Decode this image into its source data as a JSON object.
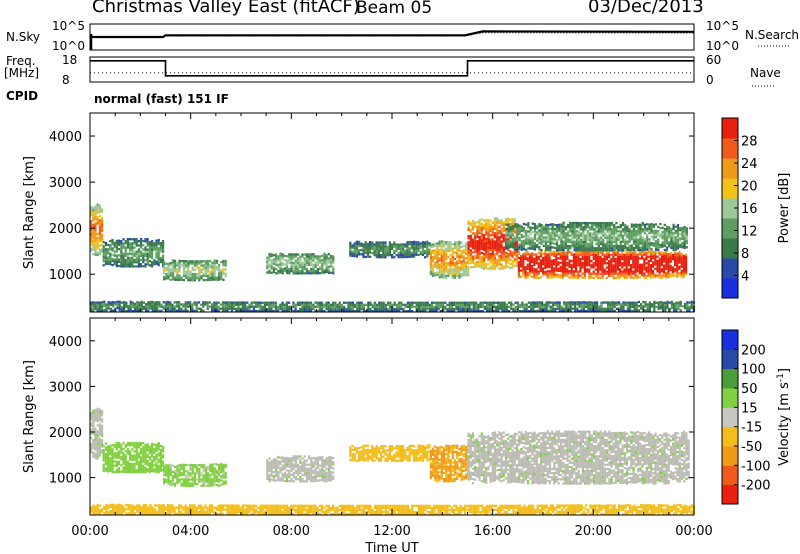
{
  "header": {
    "title": "Christmas Valley East (fitACF)",
    "beam": "Beam 05",
    "date": "03/Dec/2013"
  },
  "labels": {
    "nsky": "N.Sky",
    "nsearch": "N.Search",
    "freq": "Freq.",
    "freq_unit": "[MHz]",
    "nave": "Nave",
    "cpid": "CPID",
    "cpid_value": "normal (fast) 151 IF",
    "nsky_ticks": [
      "10^5",
      "10^0"
    ],
    "nsearch_ticks": [
      "10^5",
      "10^0"
    ],
    "freq_ticks": [
      "18",
      "8"
    ],
    "nave_ticks": [
      "60",
      "0"
    ]
  },
  "colors": {
    "power": [
      "#1a2fe0",
      "#2a4aa8",
      "#3a7a4a",
      "#5e9e63",
      "#9ec89a",
      "#f2c21a",
      "#f09a1a",
      "#f05a1a",
      "#e8200e"
    ],
    "velocity": [
      "#e8200e",
      "#f05a1a",
      "#f09a1a",
      "#f3be1c",
      "#c8c8c0",
      "#80d040",
      "#4a9e3a",
      "#2a4aa8",
      "#1a2fe0"
    ],
    "ground_scatter": "#bcbcb4"
  },
  "chart_data": [
    {
      "type": "line",
      "name": "noise-panel",
      "x": [
        0,
        2.9,
        3.0,
        14.9,
        15.6,
        24
      ],
      "series": [
        {
          "name": "N.Sky",
          "values": [
            3.0,
            3.0,
            3.4,
            3.4,
            4.3,
            4.2
          ]
        },
        {
          "name": "N.Search",
          "values": [
            2.9,
            2.9,
            3.2,
            3.2,
            4.0,
            3.9
          ]
        }
      ],
      "ylabel": "N.Sky / N.Search",
      "xlim": [
        0,
        24
      ]
    },
    {
      "type": "line",
      "name": "freq-nave-panel",
      "x": [
        0,
        3.0,
        3.0,
        15.0,
        15.0,
        24
      ],
      "series": [
        {
          "name": "Freq.",
          "values": [
            16.5,
            16.5,
            10.5,
            10.5,
            16.5,
            16.5
          ]
        },
        {
          "name": "Nave",
          "values": [
            22,
            22,
            22,
            22,
            22,
            22
          ]
        }
      ],
      "ylim": [
        8,
        18
      ],
      "xlim": [
        0,
        24
      ]
    },
    {
      "type": "heatmap",
      "name": "power-panel",
      "xlabel": "",
      "ylabel": "Slant Range [km]",
      "xlim": [
        0,
        24
      ],
      "ylim": [
        180,
        4500
      ],
      "x_ticks": [
        "00:00",
        "04:00",
        "08:00",
        "12:00",
        "16:00",
        "20:00",
        "00:00"
      ],
      "y_ticks": [
        1000,
        2000,
        3000,
        4000
      ],
      "colorbar_label": "Power [dB]",
      "colorbar_ticks": [
        4,
        8,
        12,
        16,
        20,
        24,
        28
      ],
      "zlim": [
        0,
        30
      ],
      "regions": [
        {
          "x": [
            0.0,
            0.5
          ],
          "y": [
            1400,
            2500
          ],
          "value": 18
        },
        {
          "x": [
            0.5,
            2.9
          ],
          "y": [
            1150,
            1750
          ],
          "value": 9
        },
        {
          "x": [
            2.9,
            5.4
          ],
          "y": [
            850,
            1300
          ],
          "value": 12
        },
        {
          "x": [
            7.0,
            9.7
          ],
          "y": [
            1000,
            1450
          ],
          "value": 11
        },
        {
          "x": [
            10.3,
            13.5
          ],
          "y": [
            1350,
            1700
          ],
          "value": 8
        },
        {
          "x": [
            13.5,
            15.0
          ],
          "y": [
            900,
            1700
          ],
          "value": 17
        },
        {
          "x": [
            15.0,
            17.0
          ],
          "y": [
            1100,
            2200
          ],
          "value": 22
        },
        {
          "x": [
            17.0,
            23.7
          ],
          "y": [
            900,
            1500
          ],
          "value": 27
        },
        {
          "x": [
            16.5,
            23.7
          ],
          "y": [
            1500,
            2100
          ],
          "value": 10
        },
        {
          "x": [
            0.0,
            24.0
          ],
          "y": [
            180,
            400
          ],
          "value": 8
        }
      ]
    },
    {
      "type": "heatmap",
      "name": "velocity-panel",
      "xlabel": "Time UT",
      "ylabel": "Slant Range [km]",
      "xlim": [
        0,
        24
      ],
      "ylim": [
        180,
        4500
      ],
      "x_ticks": [
        "00:00",
        "04:00",
        "08:00",
        "12:00",
        "16:00",
        "20:00",
        "00:00"
      ],
      "y_ticks": [
        1000,
        2000,
        3000,
        4000
      ],
      "colorbar_label": "Velocity [m s^-1]",
      "colorbar_ticks": [
        -200,
        -100,
        -50,
        -15,
        15,
        50,
        100,
        200
      ],
      "zlim": [
        -250,
        250
      ],
      "regions": [
        {
          "x": [
            0.0,
            0.5
          ],
          "y": [
            1400,
            2500
          ],
          "value": 0,
          "ground": true
        },
        {
          "x": [
            0.5,
            2.9
          ],
          "y": [
            1100,
            1750
          ],
          "value": 60
        },
        {
          "x": [
            2.9,
            5.4
          ],
          "y": [
            800,
            1300
          ],
          "value": 40
        },
        {
          "x": [
            7.0,
            9.7
          ],
          "y": [
            900,
            1450
          ],
          "value": 0,
          "ground": true
        },
        {
          "x": [
            10.3,
            13.5
          ],
          "y": [
            1350,
            1700
          ],
          "value": -60
        },
        {
          "x": [
            13.5,
            15.0
          ],
          "y": [
            900,
            1700
          ],
          "value": -90
        },
        {
          "x": [
            15.0,
            23.8
          ],
          "y": [
            850,
            2000
          ],
          "value": 0,
          "ground": true
        },
        {
          "x": [
            0.0,
            24.0
          ],
          "y": [
            180,
            400
          ],
          "value": -60
        }
      ]
    }
  ]
}
